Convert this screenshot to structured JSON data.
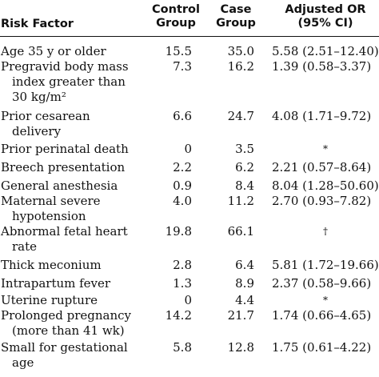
{
  "table": {
    "headers": {
      "factor": "Risk Factor",
      "control": [
        "Control",
        "Group"
      ],
      "case": [
        "Case",
        "Group"
      ],
      "or": [
        "Adjusted OR",
        "(95% CI)"
      ]
    },
    "rows": [
      {
        "factor": [
          "Age 35 y or older"
        ],
        "control": "15.5",
        "case": "35.0",
        "or": "5.58 (2.51–12.40)"
      },
      {
        "factor": [
          "Pregravid body mass",
          "index greater than",
          "30 kg/m²"
        ],
        "control": "7.3",
        "case": "16.2",
        "or": "1.39 (0.58–3.37)"
      },
      {
        "factor": [
          "Prior cesarean",
          "delivery"
        ],
        "control": "6.6",
        "case": "24.7",
        "or": "4.08 (1.71–9.72)"
      },
      {
        "factor": [
          "Prior perinatal death"
        ],
        "control": "0",
        "case": "3.5",
        "or": "*"
      },
      {
        "factor": [
          "Breech presentation"
        ],
        "control": "2.2",
        "case": "6.2",
        "or": "2.21 (0.57–8.64)"
      },
      {
        "factor": [
          "General anesthesia"
        ],
        "control": "0.9",
        "case": "8.4",
        "or": "8.04 (1.28–50.60)"
      },
      {
        "factor": [
          "Maternal severe",
          "hypotension"
        ],
        "control": "4.0",
        "case": "11.2",
        "or": "2.70 (0.93–7.82)"
      },
      {
        "factor": [
          "Abnormal fetal heart",
          "rate"
        ],
        "control": "19.8",
        "case": "66.1",
        "or": "†"
      },
      {
        "factor": [
          "Thick meconium"
        ],
        "control": "2.8",
        "case": "6.4",
        "or": "5.81 (1.72–19.66)"
      },
      {
        "factor": [
          "Intrapartum fever"
        ],
        "control": "1.3",
        "case": "8.9",
        "or": "2.37 (0.58–9.66)"
      },
      {
        "factor": [
          "Uterine rupture"
        ],
        "control": "0",
        "case": "4.4",
        "or": "*"
      },
      {
        "factor": [
          "Prolonged pregnancy",
          "(more than 41 wk)"
        ],
        "control": "14.2",
        "case": "21.7",
        "or": "1.74 (0.66–4.65)"
      },
      {
        "factor": [
          "Small for gestational",
          "age"
        ],
        "control": "5.8",
        "case": "12.8",
        "or": "1.75 (0.61–4.22)"
      }
    ]
  }
}
